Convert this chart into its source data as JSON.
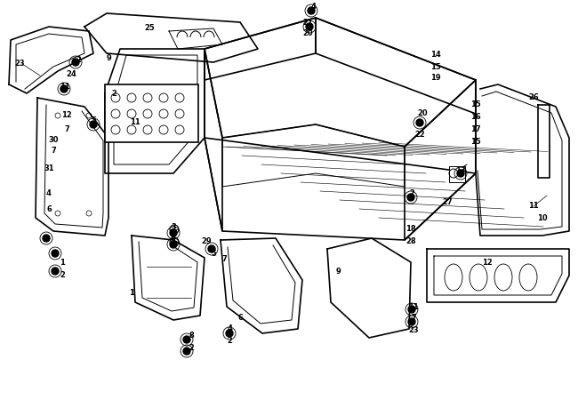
{
  "background_color": "#ffffff",
  "line_color": "#000000",
  "label_color": "#000000",
  "figsize": [
    6.5,
    4.68
  ],
  "dpi": 100
}
